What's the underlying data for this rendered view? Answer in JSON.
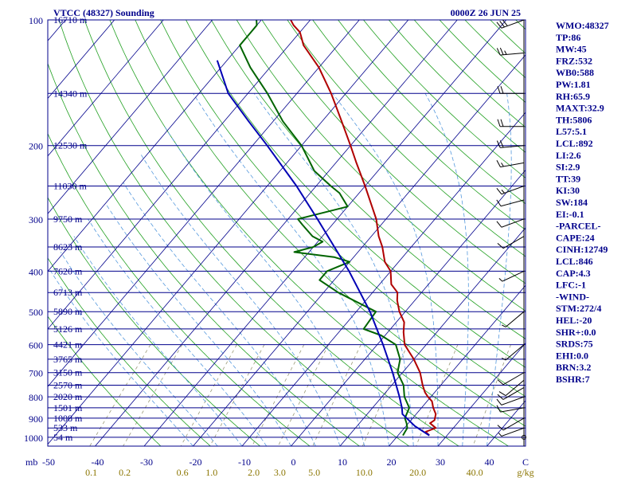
{
  "header": {
    "station": "VTCC (48327) Sounding",
    "time": "0000Z 26 JUN 25"
  },
  "chart_data": {
    "type": "line",
    "plot": "skew-t log-p",
    "pressure_ticks": [
      "100",
      "200",
      "300",
      "400",
      "500",
      "600",
      "700",
      "800",
      "900",
      "1000"
    ],
    "pressure_axis_label": "mb",
    "temperature_ticks": [
      "-50",
      "-40",
      "-30",
      "-20",
      "-10",
      "0",
      "10",
      "20",
      "30",
      "40",
      "C"
    ],
    "mixing_ratio_labels": [
      {
        "text": "0.1",
        "w": 0.1
      },
      {
        "text": "0.2",
        "w": 0.2
      },
      {
        "text": "0.6",
        "w": 0.6
      },
      {
        "text": "1.0",
        "w": 1.0
      },
      {
        "text": "2.0",
        "w": 2.0
      },
      {
        "text": "3.0",
        "w": 3.0
      },
      {
        "text": "5.0",
        "w": 5.0
      },
      {
        "text": "10.0",
        "w": 10.0
      },
      {
        "text": "20.0",
        "w": 20.0
      },
      {
        "text": "40.0",
        "w": 40.0
      },
      {
        "text": "g/kg",
        "w": null
      }
    ],
    "heights": [
      {
        "p": 100,
        "label": "16710 m"
      },
      {
        "p": 150,
        "label": "14340 m"
      },
      {
        "p": 200,
        "label": "12530 m"
      },
      {
        "p": 250,
        "label": "11030 m"
      },
      {
        "p": 300,
        "label": "9750 m"
      },
      {
        "p": 350,
        "label": "8623 m"
      },
      {
        "p": 400,
        "label": "7620 m"
      },
      {
        "p": 450,
        "label": "6713 m"
      },
      {
        "p": 500,
        "label": "5890 m"
      },
      {
        "p": 550,
        "label": "5126 m"
      },
      {
        "p": 600,
        "label": "4421 m"
      },
      {
        "p": 650,
        "label": "3765 m"
      },
      {
        "p": 700,
        "label": "3150 m"
      },
      {
        "p": 750,
        "label": "2570 m"
      },
      {
        "p": 800,
        "label": "2020 m"
      },
      {
        "p": 850,
        "label": "1501 m"
      },
      {
        "p": 900,
        "label": "1008 m"
      },
      {
        "p": 950,
        "label": "533 m"
      },
      {
        "p": 1000,
        "label": "54 m"
      }
    ],
    "series": [
      {
        "role": "temperature",
        "color": "#b00000",
        "points": [
          [
            990,
            26.4
          ],
          [
            970,
            25.0
          ],
          [
            950,
            26.4
          ],
          [
            925,
            24.4
          ],
          [
            910,
            24.8
          ],
          [
            880,
            24.0
          ],
          [
            850,
            22.4
          ],
          [
            820,
            21.0
          ],
          [
            800,
            19.4
          ],
          [
            780,
            18.0
          ],
          [
            750,
            16.3
          ],
          [
            700,
            13.6
          ],
          [
            650,
            10.0
          ],
          [
            620,
            7.4
          ],
          [
            600,
            5.6
          ],
          [
            560,
            3.2
          ],
          [
            530,
            1.6
          ],
          [
            500,
            -1.2
          ],
          [
            470,
            -3.6
          ],
          [
            450,
            -4.9
          ],
          [
            430,
            -7.6
          ],
          [
            400,
            -10.0
          ],
          [
            380,
            -12.8
          ],
          [
            350,
            -15.9
          ],
          [
            330,
            -18.5
          ],
          [
            300,
            -22.0
          ],
          [
            250,
            -30.0
          ],
          [
            220,
            -35.8
          ],
          [
            200,
            -40.0
          ],
          [
            175,
            -46.0
          ],
          [
            150,
            -53.0
          ],
          [
            130,
            -60.0
          ],
          [
            115,
            -67.0
          ],
          [
            107,
            -70.0
          ],
          [
            103,
            -72.5
          ],
          [
            100,
            -74.0
          ]
        ]
      },
      {
        "role": "dewpoint",
        "color": "#006400",
        "points": [
          [
            990,
            21.0
          ],
          [
            950,
            20.6
          ],
          [
            925,
            19.6
          ],
          [
            900,
            18.4
          ],
          [
            850,
            17.5
          ],
          [
            800,
            14.6
          ],
          [
            750,
            12.4
          ],
          [
            700,
            9.0
          ],
          [
            650,
            7.2
          ],
          [
            600,
            3.8
          ],
          [
            570,
            -0.8
          ],
          [
            550,
            -5.5
          ],
          [
            500,
            -6.0
          ],
          [
            450,
            -17.0
          ],
          [
            420,
            -23.0
          ],
          [
            400,
            -23.0
          ],
          [
            380,
            -20.0
          ],
          [
            370,
            -24.0
          ],
          [
            360,
            -33.0
          ],
          [
            350,
            -30.0
          ],
          [
            340,
            -29.0
          ],
          [
            330,
            -32.0
          ],
          [
            310,
            -36.0
          ],
          [
            300,
            -38.0
          ],
          [
            280,
            -30.0
          ],
          [
            260,
            -34.0
          ],
          [
            250,
            -37.0
          ],
          [
            230,
            -43.0
          ],
          [
            200,
            -50.0
          ],
          [
            175,
            -58.0
          ],
          [
            150,
            -66.0
          ],
          [
            130,
            -74.0
          ],
          [
            115,
            -80.0
          ],
          [
            107,
            -80.0
          ],
          [
            103,
            -80.0
          ],
          [
            100,
            -81.0
          ]
        ]
      },
      {
        "role": "parcel",
        "color": "#0000b4",
        "points": [
          [
            990,
            26.4
          ],
          [
            940,
            21.8
          ],
          [
            880,
            17.2
          ],
          [
            850,
            16.0
          ],
          [
            800,
            13.6
          ],
          [
            700,
            8.0
          ],
          [
            600,
            1.2
          ],
          [
            500,
            -7.2
          ],
          [
            400,
            -18.5
          ],
          [
            300,
            -34.0
          ],
          [
            250,
            -44.0
          ],
          [
            200,
            -57.0
          ],
          [
            175,
            -65.0
          ],
          [
            150,
            -74.0
          ],
          [
            125,
            -82.0
          ]
        ]
      }
    ],
    "winds": [
      {
        "p": 100,
        "dir": 250,
        "spd": 30
      },
      {
        "p": 120,
        "dir": 265,
        "spd": 25
      },
      {
        "p": 150,
        "dir": 270,
        "spd": 20
      },
      {
        "p": 180,
        "dir": 270,
        "spd": 20
      },
      {
        "p": 200,
        "dir": 265,
        "spd": 20
      },
      {
        "p": 220,
        "dir": 260,
        "spd": 15
      },
      {
        "p": 250,
        "dir": 250,
        "spd": 15
      },
      {
        "p": 270,
        "dir": 255,
        "spd": 10
      },
      {
        "p": 300,
        "dir": 250,
        "spd": 10
      },
      {
        "p": 330,
        "dir": 240,
        "spd": 10
      },
      {
        "p": 400,
        "dir": 245,
        "spd": 5
      },
      {
        "p": 500,
        "dir": 230,
        "spd": 5
      },
      {
        "p": 600,
        "dir": 230,
        "spd": 5
      },
      {
        "p": 700,
        "dir": 240,
        "spd": 10
      },
      {
        "p": 730,
        "dir": 230,
        "spd": 10
      },
      {
        "p": 760,
        "dir": 240,
        "spd": 10
      },
      {
        "p": 800,
        "dir": 250,
        "spd": 10
      },
      {
        "p": 850,
        "dir": 260,
        "spd": 10
      },
      {
        "p": 900,
        "dir": 240,
        "spd": 10
      },
      {
        "p": 950,
        "dir": 250,
        "spd": 5
      },
      {
        "p": 1000,
        "dir": 0,
        "spd": 0
      }
    ],
    "indices": [
      "WMO:48327",
      "TP:86",
      "MW:45",
      "FRZ:532",
      "WB0:588",
      "PW:1.81",
      "RH:65.9",
      "MAXT:32.9",
      "TH:5806",
      "L57:5.1",
      "LCL:892",
      "LI:2.6",
      "SI:2.9",
      "TT:39",
      "KI:30",
      "SW:184",
      "EI:-0.1",
      "-PARCEL-",
      "CAPE:24",
      "CINH:12749",
      "LCL:846",
      "CAP:4.3",
      "LFC:-1",
      "-WIND-",
      "STM:272/4",
      "HEL:-20",
      "SHR+:0.0",
      "SRDS:75",
      "EHI:0.0",
      "BRN:3.2",
      "BSHR:7"
    ]
  },
  "colors": {
    "frame": "#00008b",
    "isobar": "#00008b",
    "isotherm": "#00008b",
    "dry_adiabat": "#22a022",
    "moist_adiabat": "#5599dd",
    "mixing_ratio": "#999977",
    "label_blue": "#00008b",
    "mixing_label": "#8b7500"
  }
}
